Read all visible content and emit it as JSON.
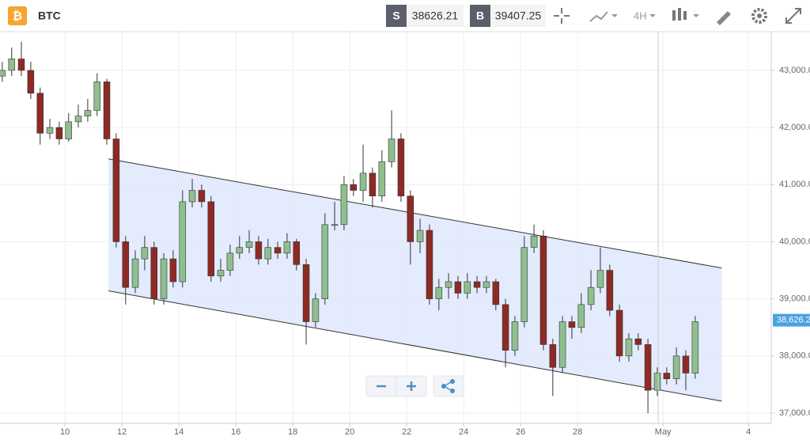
{
  "toolbar": {
    "symbol": "BTC",
    "sell_label": "S",
    "sell_price": "38626.21",
    "buy_label": "B",
    "buy_price": "39407.25",
    "interval": "4H"
  },
  "chart_data": {
    "type": "candlestick",
    "x": [
      7.8,
      8.13,
      8.47,
      8.8,
      9.13,
      9.47,
      9.8,
      10.13,
      10.47,
      10.8,
      11.13,
      11.47,
      11.8,
      12.13,
      12.47,
      12.8,
      13.13,
      13.47,
      13.8,
      14.13,
      14.47,
      14.8,
      15.13,
      15.47,
      15.8,
      16.13,
      16.47,
      16.8,
      17.13,
      17.47,
      17.8,
      18.13,
      18.47,
      18.8,
      19.13,
      19.47,
      19.8,
      20.13,
      20.47,
      20.8,
      21.13,
      21.47,
      21.8,
      22.13,
      22.47,
      22.8,
      23.13,
      23.47,
      23.8,
      24.13,
      24.47,
      24.8,
      25.13,
      25.47,
      25.8,
      26.13,
      26.47,
      26.8,
      27.13,
      27.47,
      27.8,
      28.13,
      28.47,
      28.8,
      29.13,
      29.47,
      29.8,
      30.13,
      30.47,
      30.8,
      31.13,
      31.47,
      31.8,
      32.13
    ],
    "ohlc": [
      [
        42900,
        43150,
        42800,
        43000
      ],
      [
        43000,
        43400,
        42900,
        43200
      ],
      [
        43200,
        43500,
        42900,
        43000
      ],
      [
        43000,
        43150,
        42500,
        42600
      ],
      [
        42600,
        42700,
        41700,
        41900
      ],
      [
        41900,
        42150,
        41800,
        42000
      ],
      [
        42000,
        42100,
        41700,
        41800
      ],
      [
        41800,
        42250,
        41750,
        42100
      ],
      [
        42100,
        42400,
        42000,
        42200
      ],
      [
        42200,
        42500,
        42100,
        42300
      ],
      [
        42300,
        42950,
        42200,
        42800
      ],
      [
        42800,
        42850,
        41700,
        41800
      ],
      [
        41800,
        41900,
        39900,
        40000
      ],
      [
        40000,
        40100,
        38900,
        39200
      ],
      [
        39200,
        39850,
        39100,
        39700
      ],
      [
        39700,
        40100,
        39500,
        39900
      ],
      [
        39900,
        40000,
        38900,
        39000
      ],
      [
        39000,
        39800,
        38900,
        39700
      ],
      [
        39700,
        39850,
        39200,
        39300
      ],
      [
        39300,
        40900,
        39200,
        40700
      ],
      [
        40700,
        41100,
        40600,
        40900
      ],
      [
        40900,
        41000,
        40600,
        40700
      ],
      [
        40700,
        40800,
        39300,
        39400
      ],
      [
        39400,
        39700,
        39300,
        39500
      ],
      [
        39500,
        39950,
        39400,
        39800
      ],
      [
        39800,
        40100,
        39700,
        39900
      ],
      [
        39900,
        40200,
        39800,
        40000
      ],
      [
        40000,
        40100,
        39600,
        39700
      ],
      [
        39700,
        40050,
        39600,
        39900
      ],
      [
        39900,
        40000,
        39700,
        39800
      ],
      [
        39800,
        40150,
        39700,
        40000
      ],
      [
        40000,
        40050,
        39500,
        39600
      ],
      [
        39600,
        39700,
        38200,
        38600
      ],
      [
        38600,
        39100,
        38500,
        39000
      ],
      [
        39000,
        40500,
        38900,
        40300
      ],
      [
        40300,
        40700,
        40200,
        40300
      ],
      [
        40300,
        41150,
        40200,
        41000
      ],
      [
        41000,
        41100,
        40800,
        40900
      ],
      [
        40900,
        41700,
        40700,
        41200
      ],
      [
        41200,
        41300,
        40600,
        40800
      ],
      [
        40800,
        41600,
        40700,
        41400
      ],
      [
        41400,
        42300,
        41300,
        41800
      ],
      [
        41800,
        41900,
        40700,
        40800
      ],
      [
        40800,
        40900,
        39600,
        40000
      ],
      [
        40000,
        40400,
        39800,
        40200
      ],
      [
        40200,
        40300,
        38900,
        39000
      ],
      [
        39000,
        39350,
        38800,
        39200
      ],
      [
        39200,
        39450,
        39000,
        39300
      ],
      [
        39300,
        39400,
        39000,
        39100
      ],
      [
        39100,
        39450,
        39000,
        39300
      ],
      [
        39300,
        39400,
        39100,
        39200
      ],
      [
        39200,
        39400,
        39100,
        39300
      ],
      [
        39300,
        39350,
        38800,
        38900
      ],
      [
        38900,
        39000,
        37800,
        38100
      ],
      [
        38100,
        38700,
        38000,
        38600
      ],
      [
        38600,
        40100,
        38500,
        39900
      ],
      [
        39900,
        40300,
        39800,
        40100
      ],
      [
        40100,
        40200,
        38100,
        38200
      ],
      [
        38200,
        38300,
        37300,
        37800
      ],
      [
        37800,
        38700,
        37700,
        38600
      ],
      [
        38600,
        38700,
        38300,
        38500
      ],
      [
        38500,
        39100,
        38400,
        38900
      ],
      [
        38900,
        39500,
        38800,
        39200
      ],
      [
        39200,
        39900,
        39100,
        39500
      ],
      [
        39500,
        39600,
        38700,
        38800
      ],
      [
        38800,
        38900,
        37900,
        38000
      ],
      [
        38000,
        38400,
        37900,
        38300
      ],
      [
        38300,
        38400,
        38100,
        38200
      ],
      [
        38200,
        38300,
        37000,
        37400
      ],
      [
        37400,
        37800,
        37300,
        37700
      ],
      [
        37700,
        37800,
        37500,
        37600
      ],
      [
        37600,
        38150,
        37500,
        38000
      ],
      [
        38000,
        38100,
        37400,
        37700
      ],
      [
        37700,
        38700,
        37600,
        38600
      ]
    ],
    "up_color": "#8fbf8f",
    "down_color": "#8e2a24",
    "channel": {
      "upper": [
        [
          11.53,
          41450
        ],
        [
          33.06,
          39540
        ]
      ],
      "lower": [
        [
          11.53,
          39140
        ],
        [
          33.06,
          37210
        ]
      ],
      "fill": "#dee7fb"
    },
    "last_price": {
      "value": 38626.21,
      "label": "38,626.21"
    },
    "xlim": [
      7.72,
      34.8
    ],
    "xticks": [
      10,
      12,
      14,
      16,
      18,
      20,
      22,
      24,
      26,
      28,
      {
        "value": 31,
        "label": "May"
      },
      {
        "value": 34,
        "label": "4"
      }
    ],
    "ylim": [
      36820,
      43650
    ],
    "yticks": [
      {
        "value": 37000,
        "label": "37,000.00"
      },
      {
        "value": 38000,
        "label": "38,000.00"
      },
      {
        "value": 39000,
        "label": "39,000.00"
      },
      {
        "value": 40000,
        "label": "40,000.00"
      },
      {
        "value": 41000,
        "label": "41,000.00"
      },
      {
        "value": 42000,
        "label": "42,000.00"
      },
      {
        "value": 43000,
        "label": "43,000.00"
      }
    ],
    "grid": true
  }
}
